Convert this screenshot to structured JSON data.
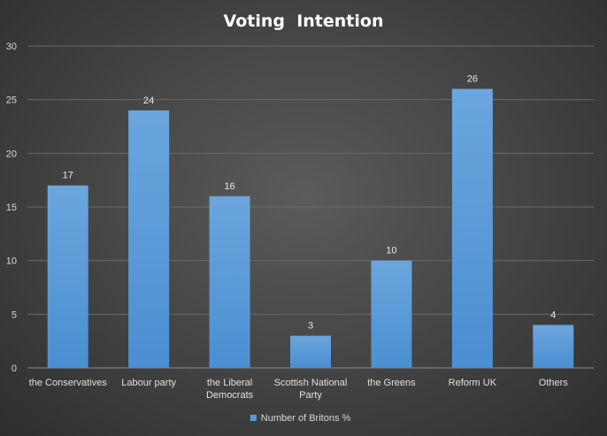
{
  "chart_data": {
    "type": "bar",
    "title": "Voting  Intention",
    "categories": [
      [
        "the Conservatives"
      ],
      [
        "Labour party"
      ],
      [
        "the Liberal",
        "Democrats"
      ],
      [
        "Scottish National",
        "Party"
      ],
      [
        "the Greens"
      ],
      [
        "Reform UK"
      ],
      [
        "Others"
      ]
    ],
    "series": [
      {
        "name": "Number of Britons %",
        "values": [
          17,
          24,
          16,
          3,
          10,
          26,
          4
        ]
      }
    ],
    "ylim": [
      0,
      30
    ],
    "yticks": [
      0,
      5,
      10,
      15,
      20,
      25,
      30
    ],
    "grid": true,
    "data_labels": true,
    "legend_position": "bottom",
    "bar_color": "#5b9bd5"
  }
}
